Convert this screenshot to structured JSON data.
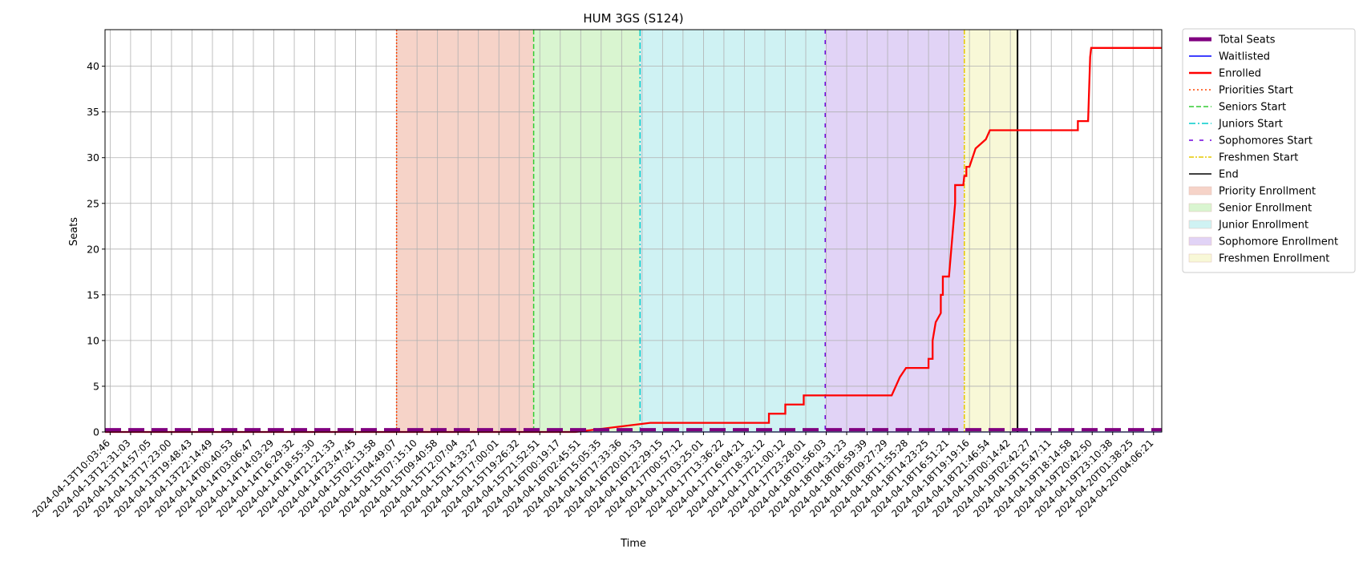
{
  "chart_data": {
    "type": "line",
    "title": "HUM 3GS (S124)",
    "xlabel": "Time",
    "ylabel": "Seats",
    "ylim": [
      0,
      44
    ],
    "yticks": [
      0,
      5,
      10,
      15,
      20,
      25,
      30,
      35,
      40
    ],
    "grid": true,
    "legend_placement": "outside-top-right",
    "x_ticks": [
      "2024-04-13T10:03:46",
      "2024-04-13T12:31:03",
      "2024-04-13T14:57:05",
      "2024-04-13T17:23:00",
      "2024-04-13T19:48:43",
      "2024-04-13T22:14:49",
      "2024-04-14T00:40:53",
      "2024-04-14T03:06:47",
      "2024-04-14T14:03:29",
      "2024-04-14T16:29:32",
      "2024-04-14T18:55:30",
      "2024-04-14T21:21:33",
      "2024-04-14T23:47:45",
      "2024-04-15T02:13:58",
      "2024-04-15T04:49:07",
      "2024-04-15T07:15:10",
      "2024-04-15T09:40:58",
      "2024-04-15T12:07:04",
      "2024-04-15T14:33:27",
      "2024-04-15T17:00:01",
      "2024-04-15T19:26:32",
      "2024-04-15T21:52:51",
      "2024-04-16T00:19:17",
      "2024-04-16T02:45:51",
      "2024-04-16T15:05:35",
      "2024-04-16T17:33:36",
      "2024-04-16T20:01:33",
      "2024-04-16T22:29:15",
      "2024-04-17T00:57:12",
      "2024-04-17T03:25:01",
      "2024-04-17T13:36:22",
      "2024-04-17T16:04:21",
      "2024-04-17T18:32:12",
      "2024-04-17T21:00:12",
      "2024-04-17T23:28:01",
      "2024-04-18T01:56:03",
      "2024-04-18T04:31:23",
      "2024-04-18T06:59:39",
      "2024-04-18T09:27:29",
      "2024-04-18T11:55:28",
      "2024-04-18T14:23:25",
      "2024-04-18T16:51:21",
      "2024-04-18T19:19:16",
      "2024-04-18T21:46:54",
      "2024-04-19T00:14:42",
      "2024-04-19T02:42:27",
      "2024-04-19T15:47:11",
      "2024-04-19T18:14:58",
      "2024-04-19T20:42:50",
      "2024-04-19T23:10:38",
      "2024-04-20T01:38:25",
      "2024-04-20T04:06:21"
    ],
    "x_range_ticks": [
      -0.25,
      51.4
    ],
    "series": [
      {
        "name": "Enrolled",
        "color": "#ff0000",
        "x": [
          -0.25,
          22.75,
          22.75,
          26.4,
          26.4,
          32.2,
          32.2,
          33.0,
          33.0,
          33.9,
          33.9,
          34.3,
          34.3,
          38.2,
          38.6,
          38.6,
          38.9,
          38.9,
          40.0,
          40.0,
          40.2,
          40.2,
          40.35,
          40.35,
          40.6,
          40.6,
          40.7,
          40.7,
          40.8,
          40.8,
          41.0,
          41.0,
          41.3,
          41.3,
          41.7,
          41.75,
          41.85,
          41.85,
          42.0,
          42.0,
          42.3,
          42.3,
          42.8,
          42.8,
          43.0,
          43.0,
          43.3,
          43.3,
          47.3,
          47.3,
          47.8,
          47.9,
          47.95,
          51.4
        ],
        "y": [
          0,
          0,
          0,
          1,
          1,
          1,
          2,
          2,
          3,
          3,
          4,
          4,
          4,
          4,
          6,
          6,
          7,
          7,
          7,
          8,
          8,
          10,
          12,
          12,
          13,
          15,
          15,
          17,
          17,
          17,
          17,
          17,
          25,
          27,
          27,
          28,
          28,
          29,
          29,
          29,
          31,
          31,
          32,
          32,
          33,
          33,
          33,
          33,
          33,
          34,
          34,
          41,
          42,
          42
        ]
      },
      {
        "name": "Total Seats",
        "color": "#800080",
        "x": [
          -0.25,
          51.4
        ],
        "y": [
          0.25,
          0.25
        ]
      },
      {
        "name": "Waitlisted",
        "color": "#0000ff",
        "x": [
          -0.25,
          51.4
        ],
        "y": [
          0,
          0
        ]
      }
    ],
    "vlines": [
      {
        "name": "Priorities Start",
        "x": 14.0,
        "color": "#ff4500",
        "dash": "2,2"
      },
      {
        "name": "Seniors Start",
        "x": 20.7,
        "color": "#33cc33",
        "dash": "6,3"
      },
      {
        "name": "Juniors Start",
        "x": 25.9,
        "color": "#00cccc",
        "dash": "8,3,2,3"
      },
      {
        "name": "Sophomores Start",
        "x": 34.95,
        "color": "#7000dd",
        "dash": "5,8"
      },
      {
        "name": "Freshmen Start",
        "x": 41.75,
        "color": "#e6c800",
        "dash": "6,2,2,2"
      },
      {
        "name": "End",
        "x": 44.35,
        "color": "#000000",
        "dash": ""
      }
    ],
    "bands": [
      {
        "name": "Priority Enrollment",
        "x0": 14.0,
        "x1": 20.7,
        "color": "#f6d3c8"
      },
      {
        "name": "Senior Enrollment",
        "x0": 20.7,
        "x1": 25.9,
        "color": "#d9f5d0"
      },
      {
        "name": "Junior Enrollment",
        "x0": 25.9,
        "x1": 34.95,
        "color": "#cff2f3"
      },
      {
        "name": "Sophomore Enrollment",
        "x0": 34.95,
        "x1": 41.75,
        "color": "#e1d3f6"
      },
      {
        "name": "Freshmen Enrollment",
        "x0": 41.75,
        "x1": 44.35,
        "color": "#f8f8d7"
      }
    ],
    "legend": [
      {
        "label": "Total Seats",
        "kind": "thick",
        "color": "#800080"
      },
      {
        "label": "Waitlisted",
        "kind": "line",
        "color": "#0000ff"
      },
      {
        "label": "Enrolled",
        "kind": "bold",
        "color": "#ff0000"
      },
      {
        "label": "Priorities Start",
        "kind": "dotted",
        "color": "#ff4500"
      },
      {
        "label": "Seniors Start",
        "kind": "dashed",
        "color": "#33cc33"
      },
      {
        "label": "Juniors Start",
        "kind": "dashdot",
        "color": "#00cccc"
      },
      {
        "label": "Sophomores Start",
        "kind": "sparse",
        "color": "#7000dd"
      },
      {
        "label": "Freshmen Start",
        "kind": "dashdot2",
        "color": "#e6c800"
      },
      {
        "label": "End",
        "kind": "line",
        "color": "#000000"
      },
      {
        "label": "Priority Enrollment",
        "kind": "patch",
        "color": "#f6d3c8"
      },
      {
        "label": "Senior Enrollment",
        "kind": "patch",
        "color": "#d9f5d0"
      },
      {
        "label": "Junior Enrollment",
        "kind": "patch",
        "color": "#cff2f3"
      },
      {
        "label": "Sophomore Enrollment",
        "kind": "patch",
        "color": "#e1d3f6"
      },
      {
        "label": "Freshmen Enrollment",
        "kind": "patch",
        "color": "#f8f8d7"
      }
    ]
  }
}
